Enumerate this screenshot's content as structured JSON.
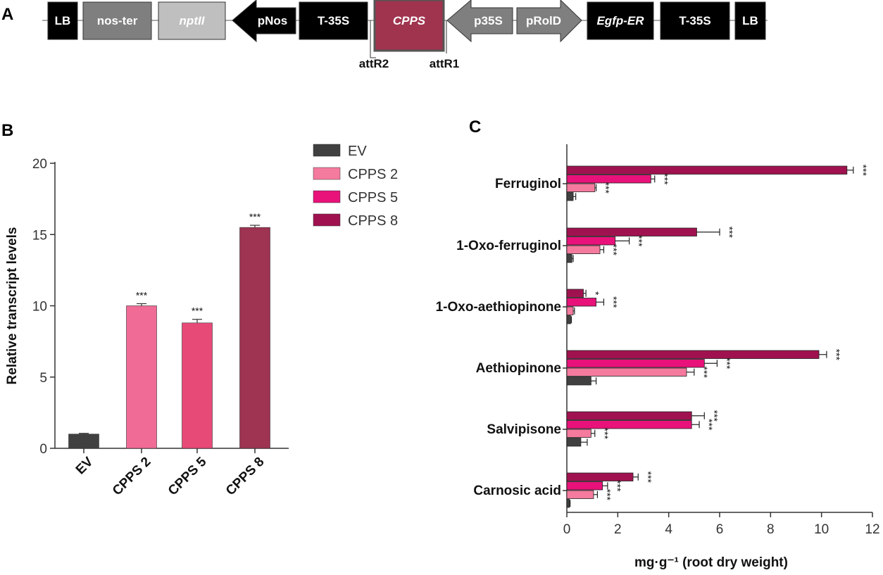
{
  "panels": {
    "a": "A",
    "b": "B",
    "c": "C"
  },
  "construct": {
    "elements": [
      {
        "label": "LB",
        "shape": "box",
        "fill": "#000000",
        "text_color": "#ffffff"
      },
      {
        "label": "nos-ter",
        "shape": "box",
        "fill": "#7f7f7f",
        "text_color": "#ffffff"
      },
      {
        "label": "nptII",
        "shape": "box",
        "fill": "#bfbfbf",
        "text_color": "#ffffff",
        "italic": true
      },
      {
        "label": "pNos",
        "shape": "arrow-left",
        "fill": "#000000",
        "text_color": "#ffffff"
      },
      {
        "label": "T-35S",
        "shape": "box",
        "fill": "#000000",
        "text_color": "#ffffff"
      },
      {
        "label": "CPPS",
        "shape": "box",
        "fill": "#a0344f",
        "text_color": "#ffffff",
        "italic": true,
        "small": true
      },
      {
        "label": "p35S",
        "shape": "arrow-left",
        "fill": "#7f7f7f",
        "text_color": "#ffffff"
      },
      {
        "label": "pRolD",
        "shape": "arrow-right",
        "fill": "#7f7f7f",
        "text_color": "#ffffff"
      },
      {
        "label": "Egfp-ER",
        "shape": "box",
        "fill": "#000000",
        "text_color": "#ffffff",
        "italic": true
      },
      {
        "label": "T-35S",
        "shape": "box",
        "fill": "#000000",
        "text_color": "#ffffff"
      },
      {
        "label": "LB",
        "shape": "box",
        "fill": "#000000",
        "text_color": "#ffffff"
      }
    ],
    "sites": {
      "left": "attR2",
      "right": "attR1"
    }
  },
  "chart_data": [
    {
      "id": "B",
      "type": "bar",
      "title": "",
      "ylabel": "Relative transcript levels",
      "xlabel": "",
      "categories": [
        "EV",
        "CPPS 2",
        "CPPS 5",
        "CPPS 8"
      ],
      "values": [
        1.0,
        10.0,
        8.8,
        15.5
      ],
      "errors": [
        0.05,
        0.15,
        0.25,
        0.15
      ],
      "significance": [
        "",
        "***",
        "***",
        "***"
      ],
      "colors": [
        "#404040",
        "#f06b96",
        "#e84a78",
        "#9e3352"
      ],
      "ylim": [
        0,
        20
      ],
      "yticks": [
        "0",
        "5",
        "10",
        "15",
        "20"
      ]
    },
    {
      "id": "C",
      "type": "bar",
      "orientation": "horizontal",
      "title": "",
      "xlabel": "mg·g⁻¹ (root dry weight)",
      "xlim": [
        0,
        12
      ],
      "xticks": [
        "0",
        "2",
        "4",
        "6",
        "8",
        "10",
        "12"
      ],
      "legend": {
        "position": "top-left",
        "entries": [
          {
            "name": "EV",
            "color": "#404040"
          },
          {
            "name": "CPPS 2",
            "color": "#f47a9e"
          },
          {
            "name": "CPPS 5",
            "color": "#e8127a"
          },
          {
            "name": "CPPS 8",
            "color": "#a0124f"
          }
        ]
      },
      "categories": [
        "Ferruginol",
        "1-Oxo-ferruginol",
        "1-Oxo-aethiopinone",
        "Aethiopinone",
        "Salvipisone",
        "Carnosic acid"
      ],
      "series": [
        {
          "name": "CPPS 8",
          "values": [
            11.0,
            5.1,
            0.65,
            9.9,
            4.9,
            2.6
          ],
          "errors": [
            0.25,
            0.9,
            0.1,
            0.3,
            0.5,
            0.2
          ],
          "significance": [
            "***",
            "***",
            "*",
            "***",
            "***",
            "***"
          ]
        },
        {
          "name": "CPPS 5",
          "values": [
            3.3,
            1.9,
            1.15,
            5.4,
            4.9,
            1.4
          ],
          "errors": [
            0.15,
            0.55,
            0.3,
            0.5,
            0.3,
            0.2
          ],
          "significance": [
            "***",
            "***",
            "***",
            "***",
            "***",
            "***"
          ]
        },
        {
          "name": "CPPS 2",
          "values": [
            1.1,
            1.3,
            0.25,
            4.7,
            0.95,
            1.05
          ],
          "errors": [
            0.05,
            0.15,
            0.05,
            0.3,
            0.15,
            0.15
          ],
          "significance": [
            "***",
            "***",
            "",
            "***",
            "***",
            "***"
          ]
        },
        {
          "name": "EV",
          "values": [
            0.25,
            0.2,
            0.15,
            0.95,
            0.55,
            0.1
          ],
          "errors": [
            0.1,
            0.05,
            0.03,
            0.2,
            0.25,
            0.03
          ],
          "significance": [
            "",
            "",
            "",
            "",
            "",
            ""
          ]
        }
      ]
    }
  ]
}
